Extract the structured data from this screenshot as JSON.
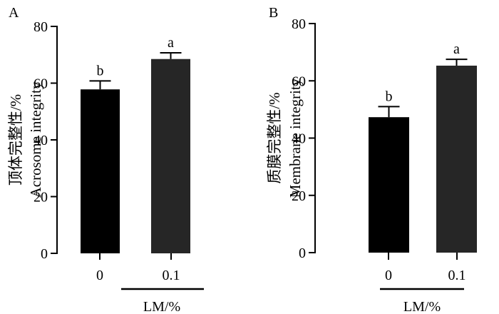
{
  "chart_data": [
    {
      "panel_label": "A",
      "type": "bar",
      "categories": [
        "0",
        "0.1"
      ],
      "values": [
        57.8,
        68.5
      ],
      "errors": [
        3.0,
        2.2
      ],
      "significance": [
        "b",
        "a"
      ],
      "bar_colors": [
        "#000000",
        "#262626"
      ],
      "ylabel_cn": "顶体完整性/%",
      "ylabel_en": "Acrosome integrity",
      "xlabel": "LM/%",
      "ylim": [
        0,
        80
      ],
      "yticks": [
        0,
        20,
        40,
        60,
        80
      ],
      "ytick_labels": [
        "0",
        "20",
        "40",
        "60",
        "80"
      ]
    },
    {
      "panel_label": "B",
      "type": "bar",
      "categories": [
        "0",
        "0.1"
      ],
      "values": [
        47.3,
        65.3
      ],
      "errors": [
        3.7,
        2.2
      ],
      "significance": [
        "b",
        "a"
      ],
      "bar_colors": [
        "#000000",
        "#262626"
      ],
      "ylabel_cn": "质膜完整性/%",
      "ylabel_en": "Membrane integrity",
      "xlabel": "LM/%",
      "ylim": [
        0,
        80
      ],
      "yticks": [
        0,
        20,
        40,
        60,
        80
      ],
      "ytick_labels": [
        "0",
        "20",
        "40",
        "60",
        "80"
      ]
    }
  ]
}
